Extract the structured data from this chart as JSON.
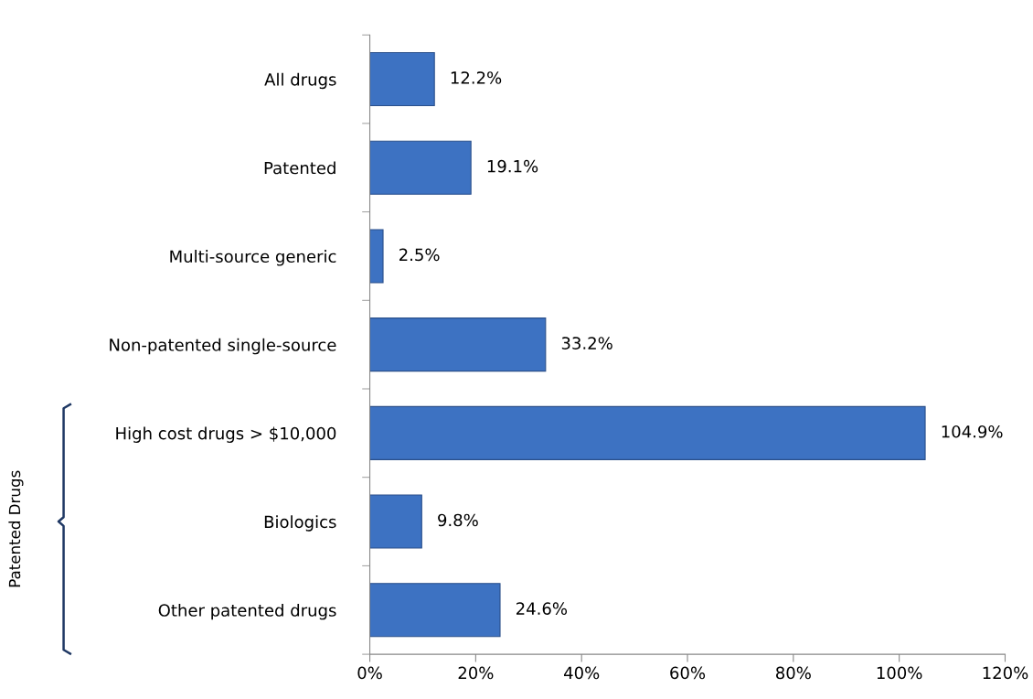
{
  "chart_data": {
    "type": "bar",
    "orientation": "horizontal",
    "categories": [
      "All drugs",
      "Patented",
      "Multi-source generic",
      "Non-patented single-source",
      "High cost drugs > $10,000",
      "Biologics",
      "Other patented drugs"
    ],
    "values": [
      12.2,
      19.1,
      2.5,
      33.2,
      104.9,
      9.8,
      24.6
    ],
    "value_labels": [
      "12.2%",
      "19.1%",
      "2.5%",
      "33.2%",
      "104.9%",
      "9.8%",
      "24.6%"
    ],
    "color": "#3d72c2",
    "xlim": [
      0,
      120
    ],
    "xticks": [
      {
        "value": 0,
        "label": "0%"
      },
      {
        "value": 20,
        "label": "20%"
      },
      {
        "value": 40,
        "label": "40%"
      },
      {
        "value": 60,
        "label": "60%"
      },
      {
        "value": 80,
        "label": "80%"
      },
      {
        "value": 100,
        "label": "100%"
      },
      {
        "value": 120,
        "label": "120%"
      }
    ],
    "grid": false,
    "legend": false,
    "annotations": [
      "Patented Drugs"
    ]
  }
}
